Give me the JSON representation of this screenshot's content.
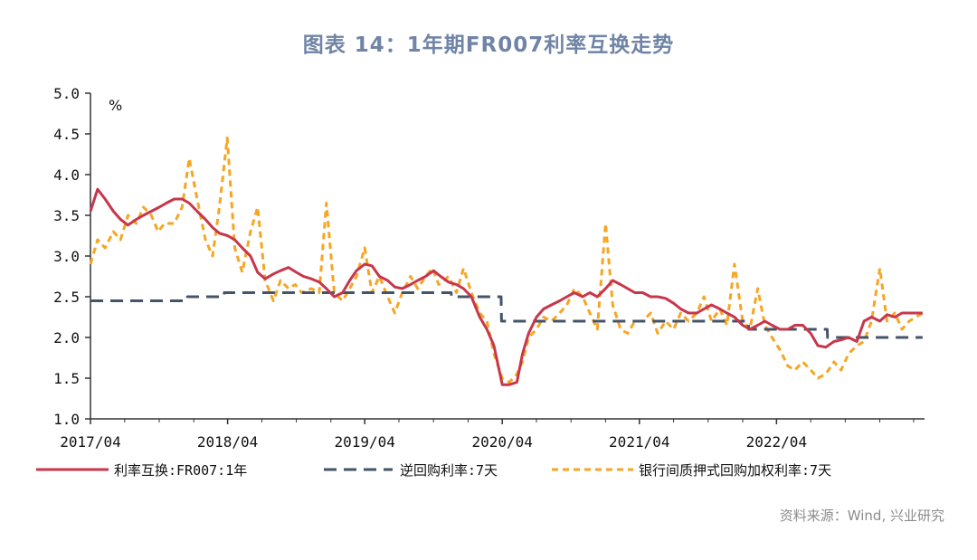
{
  "title": "图表 14：1年期FR007利率互换走势",
  "source": "资料来源：Wind, 兴业研究",
  "colors": {
    "swap": "#c8364a",
    "repo": "#44546a",
    "pledged": "#f5a623",
    "axis": "#333333"
  },
  "chart_data": {
    "type": "line",
    "unit": "%",
    "ylim": [
      1.0,
      5.0
    ],
    "yticks": [
      "5.0",
      "4.5",
      "4.0",
      "3.5",
      "3.0",
      "2.5",
      "2.0",
      "1.5",
      "1.0"
    ],
    "xlim": [
      "2017-04-01",
      "2023-04-30"
    ],
    "xticks": [
      "2017/04",
      "2018/04",
      "2019/04",
      "2020/04",
      "2021/04",
      "2022/04"
    ],
    "legend_position": "bottom",
    "series": [
      {
        "name": "利率互换:FR007:1年",
        "style": "solid",
        "points": [
          [
            "2017-04-01",
            3.55
          ],
          [
            "2017-04-20",
            3.82
          ],
          [
            "2017-05-10",
            3.7
          ],
          [
            "2017-06-01",
            3.55
          ],
          [
            "2017-06-20",
            3.45
          ],
          [
            "2017-07-10",
            3.38
          ],
          [
            "2017-08-01",
            3.45
          ],
          [
            "2017-08-20",
            3.5
          ],
          [
            "2017-09-10",
            3.55
          ],
          [
            "2017-10-01",
            3.6
          ],
          [
            "2017-10-20",
            3.65
          ],
          [
            "2017-11-10",
            3.7
          ],
          [
            "2017-12-01",
            3.7
          ],
          [
            "2017-12-20",
            3.65
          ],
          [
            "2018-01-10",
            3.55
          ],
          [
            "2018-02-01",
            3.45
          ],
          [
            "2018-02-20",
            3.35
          ],
          [
            "2018-03-10",
            3.28
          ],
          [
            "2018-04-01",
            3.25
          ],
          [
            "2018-04-20",
            3.2
          ],
          [
            "2018-05-10",
            3.1
          ],
          [
            "2018-06-01",
            3.0
          ],
          [
            "2018-06-20",
            2.8
          ],
          [
            "2018-07-10",
            2.72
          ],
          [
            "2018-08-01",
            2.78
          ],
          [
            "2018-08-20",
            2.82
          ],
          [
            "2018-09-10",
            2.86
          ],
          [
            "2018-10-01",
            2.8
          ],
          [
            "2018-10-20",
            2.75
          ],
          [
            "2018-11-10",
            2.72
          ],
          [
            "2018-12-01",
            2.68
          ],
          [
            "2018-12-20",
            2.6
          ],
          [
            "2019-01-10",
            2.5
          ],
          [
            "2019-02-01",
            2.55
          ],
          [
            "2019-02-20",
            2.7
          ],
          [
            "2019-03-10",
            2.82
          ],
          [
            "2019-04-01",
            2.9
          ],
          [
            "2019-04-20",
            2.88
          ],
          [
            "2019-05-10",
            2.75
          ],
          [
            "2019-06-01",
            2.7
          ],
          [
            "2019-06-20",
            2.62
          ],
          [
            "2019-07-10",
            2.6
          ],
          [
            "2019-08-01",
            2.65
          ],
          [
            "2019-08-20",
            2.7
          ],
          [
            "2019-09-10",
            2.75
          ],
          [
            "2019-10-01",
            2.82
          ],
          [
            "2019-10-20",
            2.75
          ],
          [
            "2019-11-10",
            2.68
          ],
          [
            "2019-12-01",
            2.65
          ],
          [
            "2019-12-20",
            2.6
          ],
          [
            "2020-01-10",
            2.5
          ],
          [
            "2020-02-01",
            2.25
          ],
          [
            "2020-02-20",
            2.1
          ],
          [
            "2020-03-10",
            1.9
          ],
          [
            "2020-04-01",
            1.42
          ],
          [
            "2020-04-20",
            1.42
          ],
          [
            "2020-05-10",
            1.45
          ],
          [
            "2020-05-25",
            1.8
          ],
          [
            "2020-06-10",
            2.05
          ],
          [
            "2020-07-01",
            2.25
          ],
          [
            "2020-07-20",
            2.35
          ],
          [
            "2020-08-10",
            2.4
          ],
          [
            "2020-09-01",
            2.45
          ],
          [
            "2020-09-20",
            2.5
          ],
          [
            "2020-10-10",
            2.55
          ],
          [
            "2020-11-01",
            2.5
          ],
          [
            "2020-11-20",
            2.55
          ],
          [
            "2020-12-10",
            2.5
          ],
          [
            "2021-01-01",
            2.6
          ],
          [
            "2021-01-20",
            2.7
          ],
          [
            "2021-02-10",
            2.65
          ],
          [
            "2021-03-01",
            2.6
          ],
          [
            "2021-03-20",
            2.55
          ],
          [
            "2021-04-10",
            2.55
          ],
          [
            "2021-05-01",
            2.5
          ],
          [
            "2021-05-20",
            2.5
          ],
          [
            "2021-06-10",
            2.48
          ],
          [
            "2021-07-01",
            2.42
          ],
          [
            "2021-07-20",
            2.35
          ],
          [
            "2021-08-10",
            2.3
          ],
          [
            "2021-09-01",
            2.3
          ],
          [
            "2021-09-20",
            2.35
          ],
          [
            "2021-10-10",
            2.4
          ],
          [
            "2021-11-01",
            2.35
          ],
          [
            "2021-11-20",
            2.3
          ],
          [
            "2021-12-10",
            2.25
          ],
          [
            "2022-01-01",
            2.15
          ],
          [
            "2022-01-20",
            2.1
          ],
          [
            "2022-02-10",
            2.15
          ],
          [
            "2022-03-01",
            2.2
          ],
          [
            "2022-03-20",
            2.15
          ],
          [
            "2022-04-10",
            2.1
          ],
          [
            "2022-05-01",
            2.1
          ],
          [
            "2022-05-20",
            2.15
          ],
          [
            "2022-06-10",
            2.15
          ],
          [
            "2022-07-01",
            2.05
          ],
          [
            "2022-07-20",
            1.9
          ],
          [
            "2022-08-10",
            1.88
          ],
          [
            "2022-09-01",
            1.95
          ],
          [
            "2022-09-20",
            1.97
          ],
          [
            "2022-10-10",
            2.0
          ],
          [
            "2022-11-01",
            1.95
          ],
          [
            "2022-11-20",
            2.2
          ],
          [
            "2022-12-10",
            2.25
          ],
          [
            "2023-01-01",
            2.2
          ],
          [
            "2023-01-20",
            2.28
          ],
          [
            "2023-02-10",
            2.25
          ],
          [
            "2023-03-01",
            2.3
          ],
          [
            "2023-03-20",
            2.3
          ],
          [
            "2023-04-25",
            2.3
          ]
        ]
      },
      {
        "name": "逆回购利率:7天",
        "style": "dashed",
        "points": [
          [
            "2017-04-01",
            2.45
          ],
          [
            "2017-12-14",
            2.45
          ],
          [
            "2017-12-15",
            2.5
          ],
          [
            "2018-03-22",
            2.5
          ],
          [
            "2018-03-23",
            2.55
          ],
          [
            "2019-11-17",
            2.55
          ],
          [
            "2019-11-18",
            2.5
          ],
          [
            "2020-03-29",
            2.5
          ],
          [
            "2020-03-30",
            2.2
          ],
          [
            "2022-01-16",
            2.2
          ],
          [
            "2022-01-17",
            2.1
          ],
          [
            "2022-08-14",
            2.1
          ],
          [
            "2022-08-15",
            2.0
          ],
          [
            "2023-04-25",
            2.0
          ]
        ]
      },
      {
        "name": "银行间质押式回购加权利率:7天",
        "style": "dashed",
        "points": [
          [
            "2017-04-01",
            2.9
          ],
          [
            "2017-04-20",
            3.2
          ],
          [
            "2017-05-10",
            3.1
          ],
          [
            "2017-06-01",
            3.3
          ],
          [
            "2017-06-20",
            3.2
          ],
          [
            "2017-07-10",
            3.5
          ],
          [
            "2017-08-01",
            3.4
          ],
          [
            "2017-08-20",
            3.6
          ],
          [
            "2017-09-10",
            3.5
          ],
          [
            "2017-09-28",
            3.3
          ],
          [
            "2017-10-15",
            3.4
          ],
          [
            "2017-11-10",
            3.4
          ],
          [
            "2017-12-01",
            3.6
          ],
          [
            "2017-12-20",
            4.2
          ],
          [
            "2018-01-10",
            3.7
          ],
          [
            "2018-02-01",
            3.2
          ],
          [
            "2018-02-20",
            3.0
          ],
          [
            "2018-03-10",
            3.6
          ],
          [
            "2018-03-31",
            4.45
          ],
          [
            "2018-04-20",
            3.1
          ],
          [
            "2018-05-10",
            2.8
          ],
          [
            "2018-06-01",
            3.3
          ],
          [
            "2018-06-20",
            3.6
          ],
          [
            "2018-07-10",
            2.7
          ],
          [
            "2018-08-01",
            2.45
          ],
          [
            "2018-08-20",
            2.7
          ],
          [
            "2018-09-10",
            2.6
          ],
          [
            "2018-09-28",
            2.65
          ],
          [
            "2018-10-15",
            2.55
          ],
          [
            "2018-11-10",
            2.6
          ],
          [
            "2018-12-01",
            2.55
          ],
          [
            "2018-12-20",
            3.65
          ],
          [
            "2019-01-10",
            2.55
          ],
          [
            "2019-02-01",
            2.45
          ],
          [
            "2019-02-20",
            2.6
          ],
          [
            "2019-03-10",
            2.75
          ],
          [
            "2019-04-01",
            3.1
          ],
          [
            "2019-04-20",
            2.55
          ],
          [
            "2019-05-10",
            2.75
          ],
          [
            "2019-06-01",
            2.5
          ],
          [
            "2019-06-20",
            2.3
          ],
          [
            "2019-07-10",
            2.55
          ],
          [
            "2019-08-01",
            2.75
          ],
          [
            "2019-08-20",
            2.6
          ],
          [
            "2019-09-10",
            2.75
          ],
          [
            "2019-09-28",
            2.85
          ],
          [
            "2019-10-15",
            2.65
          ],
          [
            "2019-11-10",
            2.75
          ],
          [
            "2019-12-01",
            2.55
          ],
          [
            "2019-12-20",
            2.85
          ],
          [
            "2020-01-10",
            2.55
          ],
          [
            "2020-02-01",
            2.3
          ],
          [
            "2020-02-20",
            2.2
          ],
          [
            "2020-03-10",
            1.8
          ],
          [
            "2020-04-01",
            1.5
          ],
          [
            "2020-04-20",
            1.45
          ],
          [
            "2020-05-10",
            1.55
          ],
          [
            "2020-05-25",
            1.7
          ],
          [
            "2020-06-10",
            2.0
          ],
          [
            "2020-07-01",
            2.1
          ],
          [
            "2020-07-20",
            2.25
          ],
          [
            "2020-08-10",
            2.2
          ],
          [
            "2020-09-01",
            2.3
          ],
          [
            "2020-09-20",
            2.4
          ],
          [
            "2020-10-10",
            2.6
          ],
          [
            "2020-11-01",
            2.5
          ],
          [
            "2020-11-20",
            2.3
          ],
          [
            "2020-12-10",
            2.1
          ],
          [
            "2021-01-01",
            3.4
          ],
          [
            "2021-01-20",
            2.4
          ],
          [
            "2021-02-10",
            2.1
          ],
          [
            "2021-03-01",
            2.05
          ],
          [
            "2021-03-20",
            2.2
          ],
          [
            "2021-04-10",
            2.2
          ],
          [
            "2021-05-01",
            2.3
          ],
          [
            "2021-05-20",
            2.05
          ],
          [
            "2021-06-10",
            2.2
          ],
          [
            "2021-07-01",
            2.1
          ],
          [
            "2021-07-20",
            2.3
          ],
          [
            "2021-08-10",
            2.2
          ],
          [
            "2021-09-01",
            2.3
          ],
          [
            "2021-09-20",
            2.5
          ],
          [
            "2021-10-10",
            2.2
          ],
          [
            "2021-11-01",
            2.35
          ],
          [
            "2021-11-20",
            2.15
          ],
          [
            "2021-12-10",
            2.9
          ],
          [
            "2022-01-01",
            2.2
          ],
          [
            "2022-01-20",
            2.1
          ],
          [
            "2022-02-10",
            2.6
          ],
          [
            "2022-03-01",
            2.15
          ],
          [
            "2022-03-20",
            2.0
          ],
          [
            "2022-04-10",
            1.85
          ],
          [
            "2022-05-01",
            1.65
          ],
          [
            "2022-05-20",
            1.6
          ],
          [
            "2022-06-10",
            1.7
          ],
          [
            "2022-07-01",
            1.6
          ],
          [
            "2022-07-20",
            1.5
          ],
          [
            "2022-08-10",
            1.55
          ],
          [
            "2022-09-01",
            1.7
          ],
          [
            "2022-09-20",
            1.6
          ],
          [
            "2022-10-10",
            1.8
          ],
          [
            "2022-11-01",
            1.9
          ],
          [
            "2022-11-20",
            1.95
          ],
          [
            "2022-12-10",
            2.2
          ],
          [
            "2023-01-01",
            2.85
          ],
          [
            "2023-01-20",
            2.2
          ],
          [
            "2023-02-10",
            2.3
          ],
          [
            "2023-03-01",
            2.1
          ],
          [
            "2023-03-20",
            2.2
          ],
          [
            "2023-04-25",
            2.3
          ]
        ]
      }
    ]
  }
}
